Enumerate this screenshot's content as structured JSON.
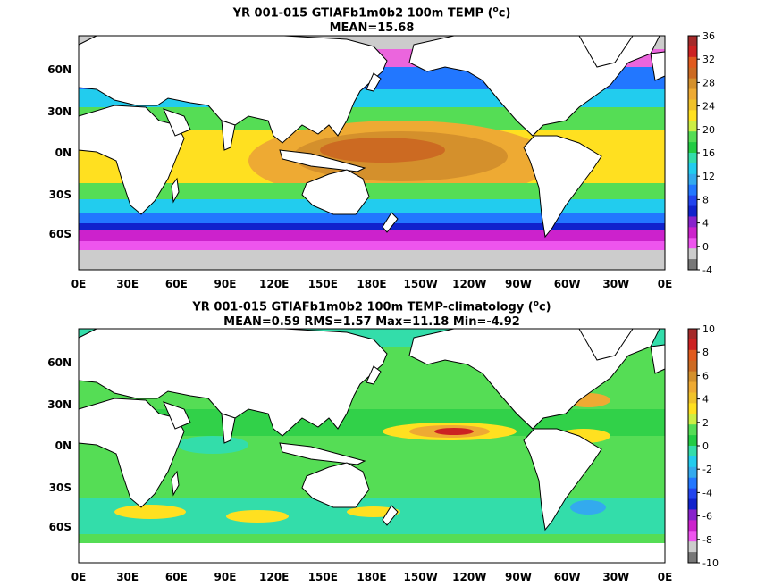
{
  "panels": [
    {
      "title_line1": "YR 001-015 GTIAFb1m0b2 100m TEMP (",
      "title_sup": "o",
      "title_unit": "c)",
      "title_line2": "MEAN=15.68",
      "lat_labels": [
        "60N",
        "30N",
        "0N",
        "30S",
        "60S"
      ],
      "lon_labels": [
        "0E",
        "30E",
        "60E",
        "90E",
        "120E",
        "150E",
        "180E",
        "150W",
        "120W",
        "90W",
        "60W",
        "30W",
        "0E"
      ],
      "colorbar_ticks": [
        "36",
        "32",
        "28",
        "24",
        "20",
        "16",
        "12",
        "8",
        "4",
        "0",
        "-4"
      ],
      "colorbar_colors": [
        "#a52a2a",
        "#cc2222",
        "#e05a1e",
        "#cc6a22",
        "#d4902c",
        "#eeaa33",
        "#f0c22a",
        "#ffe020",
        "#ccee44",
        "#55dd55",
        "#22cc44",
        "#33ddaa",
        "#22ccee",
        "#33aaee",
        "#2277ff",
        "#2244ee",
        "#1122cc",
        "#8822cc",
        "#cc22cc",
        "#ee55ee",
        "#cccccc",
        "#777777"
      ]
    },
    {
      "title_line1": "YR 001-015 GTIAFb1m0b2 100m TEMP-climatology (",
      "title_sup": "o",
      "title_unit": "c)",
      "title_line2": "MEAN=0.59   RMS=1.57   Max=11.18   Min=-4.92",
      "lat_labels": [
        "60N",
        "30N",
        "0N",
        "30S",
        "60S"
      ],
      "lon_labels": [
        "0E",
        "30E",
        "60E",
        "90E",
        "120E",
        "150E",
        "180E",
        "150W",
        "120W",
        "90W",
        "60W",
        "30W",
        "0E"
      ],
      "colorbar_ticks": [
        "10",
        "8",
        "6",
        "4",
        "2",
        "0",
        "-2",
        "-4",
        "-6",
        "-8",
        "-10"
      ],
      "colorbar_colors": [
        "#a52a2a",
        "#cc2222",
        "#e05a1e",
        "#cc6a22",
        "#d4902c",
        "#eeaa33",
        "#f0c22a",
        "#ffe020",
        "#ccee44",
        "#55dd55",
        "#22cc44",
        "#33ddaa",
        "#22ccee",
        "#33aaee",
        "#2277ff",
        "#2244ee",
        "#1122cc",
        "#8822cc",
        "#cc22cc",
        "#ee55ee",
        "#cccccc",
        "#777777"
      ]
    }
  ]
}
